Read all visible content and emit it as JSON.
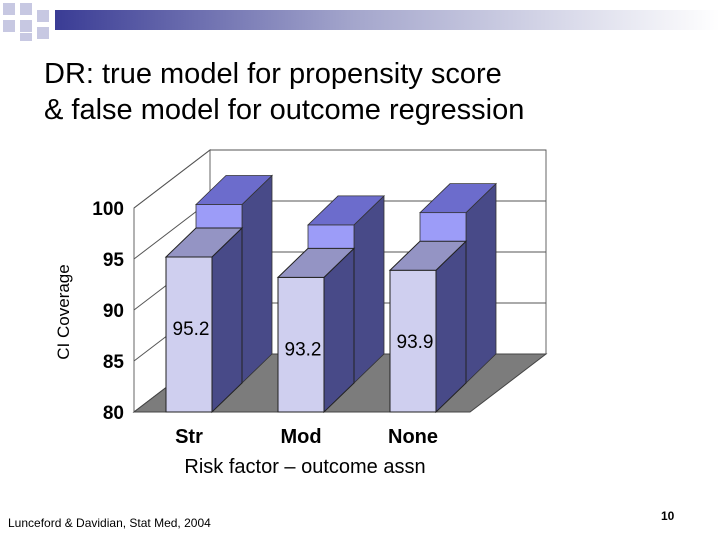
{
  "slide": {
    "title_line1": "DR: true model for propensity score",
    "title_line2": "& false model for outcome regression",
    "citation": "Lunceford & Davidian, Stat Med, 2004",
    "page_number": "10"
  },
  "colors": {
    "accent_blue": "#2d2f8e",
    "bar_front": "#cfcfef",
    "bar_side": "#484a88",
    "bar_top": "#9494c4",
    "ghost_front": "#9c9cf8",
    "ghost_top": "#6c6ccc"
  },
  "chart_data": {
    "type": "bar",
    "categories": [
      "Str",
      "Mod",
      "None"
    ],
    "values": [
      95.2,
      93.2,
      93.9
    ],
    "data_labels": [
      "95.2",
      "93.2",
      "93.9"
    ],
    "background_series_values": [
      97.5,
      95.5,
      96.7
    ],
    "xlabel": "Risk factor – outcome assn",
    "ylabel": "CI Coverage",
    "ylim": [
      80,
      100
    ],
    "yticks": [
      "80",
      "85",
      "90",
      "95",
      "100"
    ],
    "grid": true,
    "legend": "none"
  }
}
